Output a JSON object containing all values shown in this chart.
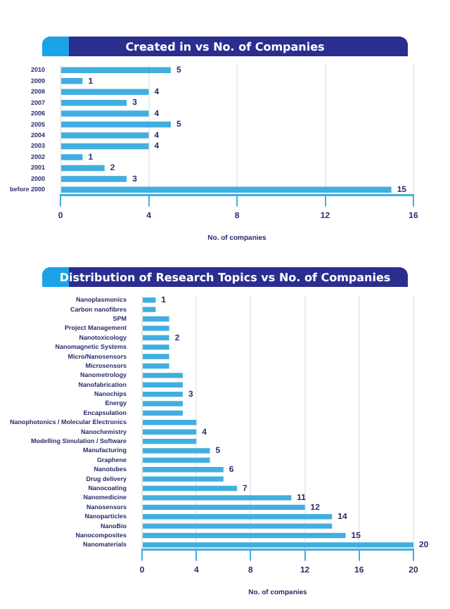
{
  "chart_data": [
    {
      "type": "bar",
      "orientation": "horizontal",
      "title": "Created in vs No. of Companies",
      "xlabel": "No. of companies",
      "categories": [
        "2010",
        "2009",
        "2008",
        "2007",
        "2006",
        "2005",
        "2004",
        "2003",
        "2002",
        "2001",
        "2000",
        "before 2000"
      ],
      "values": [
        5,
        1,
        4,
        3,
        4,
        5,
        4,
        4,
        1,
        2,
        3,
        15
      ],
      "color": "#42aee0",
      "xlim": [
        0,
        16
      ],
      "xticks": [
        0,
        4,
        8,
        12,
        16
      ],
      "grid": "x",
      "data_labels": true
    },
    {
      "type": "bar",
      "orientation": "horizontal",
      "title": "Distribution of Research Topics vs No. of Companies",
      "xlabel": "No. of companies",
      "categories": [
        "Nanoplasmonics",
        "Carbon nanofibres",
        "SPM",
        "Project Management",
        "Nanotoxicology",
        "Nanomagnetic Systems",
        "Micro/Nanosensors",
        "Microsensors",
        "Nanometrology",
        "Nanofabrication",
        "Nanochips",
        "Energy",
        "Encapsulation",
        "Nanophotonics / Molecular Electronics",
        "Nanochemistry",
        "Modelling Simulation / Software",
        "Manufacturing",
        "Graphene",
        "Nanotubes",
        "Drug delivery",
        "Nanocoating",
        "Nanomedicine",
        "Nanosensors",
        "Nanoparticles",
        "NanoBio",
        "Nanocomposites",
        "Nanomaterials"
      ],
      "values": [
        1,
        1,
        2,
        2,
        2,
        2,
        2,
        2,
        3,
        3,
        3,
        3,
        3,
        4,
        4,
        4,
        5,
        5,
        6,
        6,
        7,
        11,
        12,
        14,
        14,
        15,
        20
      ],
      "color": "#42aee0",
      "value_labels": [
        "1",
        null,
        null,
        null,
        "2",
        null,
        null,
        null,
        null,
        null,
        "3",
        null,
        null,
        null,
        "4",
        null,
        "5",
        null,
        "6",
        null,
        "7",
        "11",
        "12",
        "14",
        null,
        "15",
        "20"
      ],
      "xlim": [
        0,
        20
      ],
      "xticks": [
        0,
        4,
        8,
        12,
        16,
        20
      ],
      "grid": "x"
    }
  ]
}
